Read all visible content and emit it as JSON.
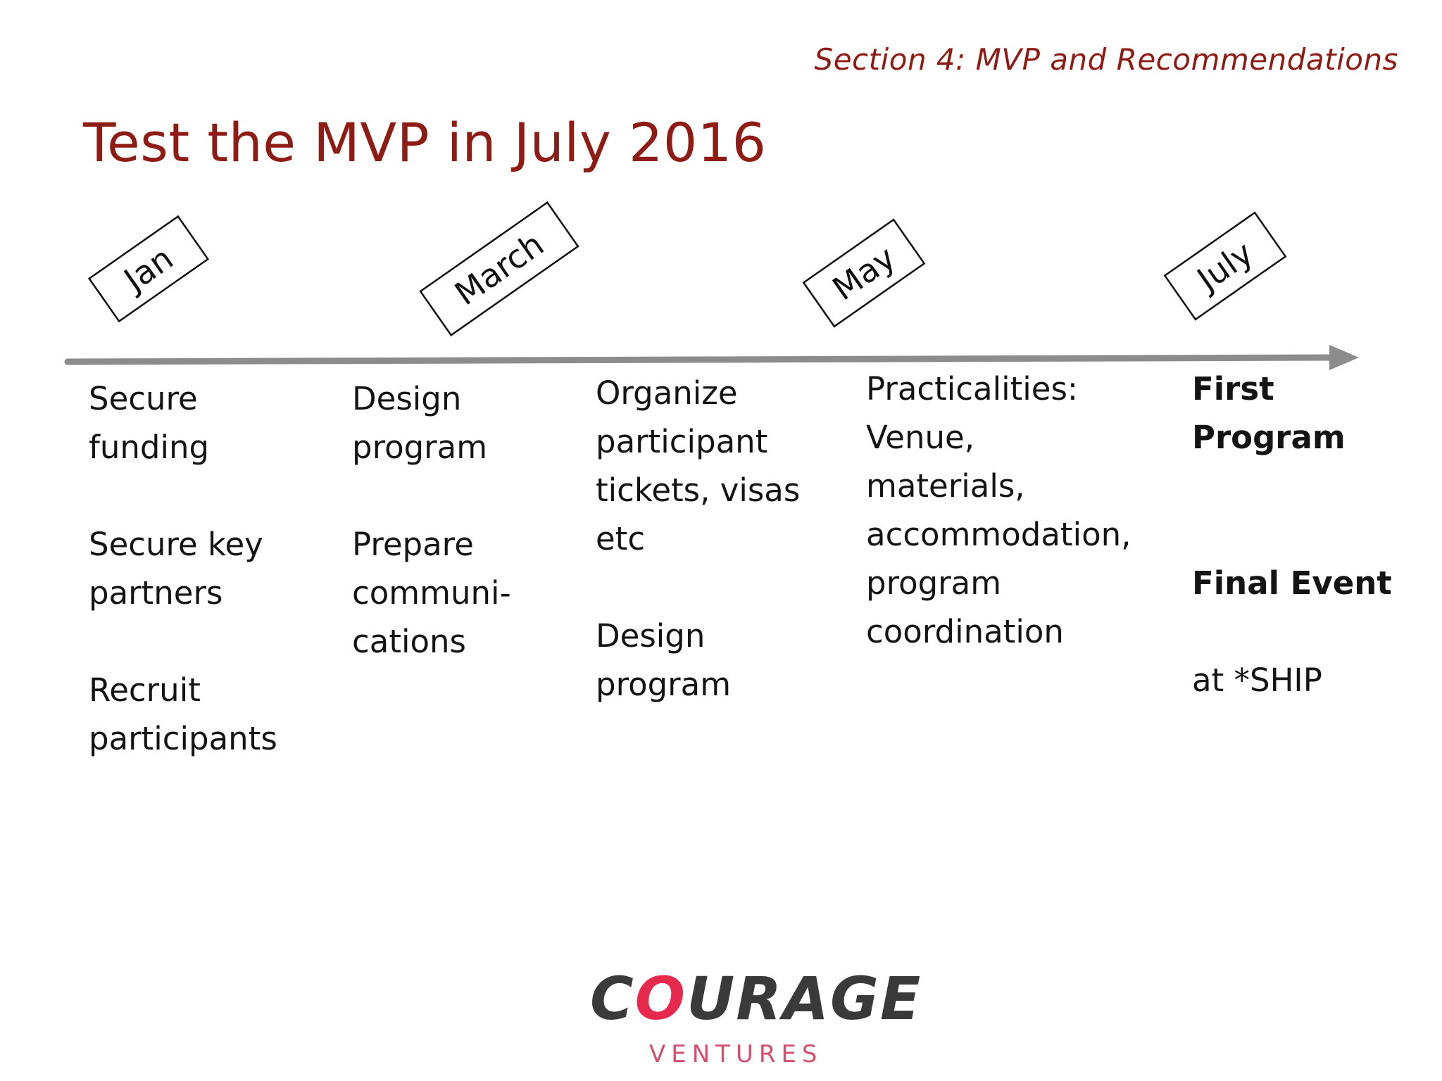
{
  "header": {
    "section": "Section 4: MVP and Recommendations",
    "title": "Test the MVP in July 2016"
  },
  "colors": {
    "accent": "#8e1b14",
    "arrow": "#8c8c8c",
    "logo_dark": "#3a3a3a",
    "logo_pink": "#e8294e"
  },
  "timeline": {
    "months": [
      "Jan",
      "March",
      "May",
      "July"
    ],
    "columns": [
      {
        "items": [
          "Secure\nfunding",
          "Secure key\npartners",
          "Recruit\nparticipants"
        ]
      },
      {
        "items": [
          "Design\nprogram",
          "Prepare\ncommuni-\ncations"
        ]
      },
      {
        "items": [
          "Organize\nparticipant\ntickets, visas\netc",
          "Design\nprogram"
        ]
      },
      {
        "items": [
          "Practicalities:\nVenue,\nmaterials,\naccommodation,\nprogram\ncoordination"
        ]
      },
      {
        "items": [
          "First\nProgram",
          "Final Event"
        ],
        "item_suffix": "at *SHIP"
      }
    ]
  },
  "logo": {
    "word_start": "C",
    "word_o": "O",
    "word_rest": "URAGE",
    "sub": "VENTURES"
  }
}
